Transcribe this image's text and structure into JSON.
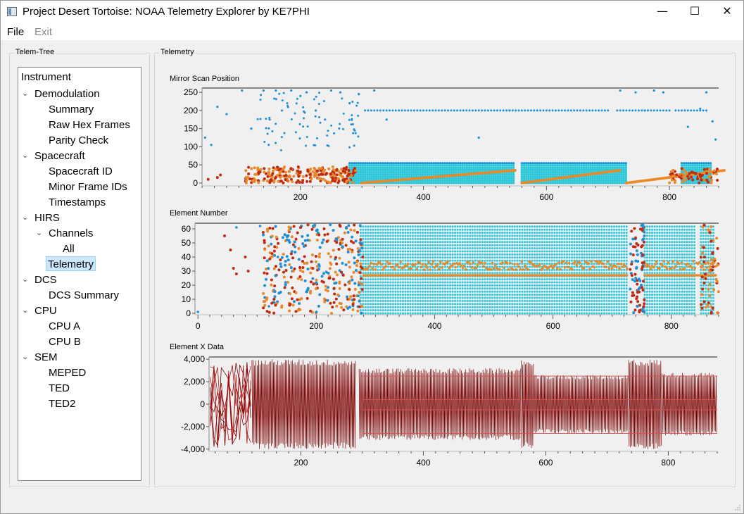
{
  "window": {
    "title": "Project Desert Tortoise: NOAA Telemetry Explorer by KE7PHI",
    "minimize_glyph": "—",
    "maximize_glyph": "☐",
    "close_glyph": "✕"
  },
  "menu": {
    "file": "File",
    "exit": "Exit"
  },
  "tree_panel": {
    "label": "Telem-Tree",
    "root": "Instrument",
    "items": [
      {
        "label": "Demodulation",
        "level": 1,
        "expanded": true
      },
      {
        "label": "Summary",
        "level": 2
      },
      {
        "label": "Raw Hex Frames",
        "level": 2
      },
      {
        "label": "Parity Check",
        "level": 2
      },
      {
        "label": "Spacecraft",
        "level": 1,
        "expanded": true
      },
      {
        "label": "Spacecraft ID",
        "level": 2
      },
      {
        "label": "Minor Frame IDs",
        "level": 2
      },
      {
        "label": "Timestamps",
        "level": 2
      },
      {
        "label": "HIRS",
        "level": 1,
        "expanded": true
      },
      {
        "label": "Channels",
        "level": 2,
        "expanded": true
      },
      {
        "label": "All",
        "level": 3
      },
      {
        "label": "Telemetry",
        "level": 2,
        "selected": true
      },
      {
        "label": "DCS",
        "level": 1,
        "expanded": true
      },
      {
        "label": "DCS Summary",
        "level": 2
      },
      {
        "label": "CPU",
        "level": 1,
        "expanded": true
      },
      {
        "label": "CPU A",
        "level": 2
      },
      {
        "label": "CPU B",
        "level": 2
      },
      {
        "label": "SEM",
        "level": 1,
        "expanded": true
      },
      {
        "label": "MEPED",
        "level": 2
      },
      {
        "label": "TED",
        "level": 2
      },
      {
        "label": "TED2",
        "level": 2
      }
    ]
  },
  "telemetry_panel": {
    "label": "Telemetry"
  },
  "colors": {
    "blue": "#1f8fd6",
    "cyan": "#2ec7d9",
    "orange": "#e8892a",
    "red": "#c02a10",
    "darkred": "#7a0000",
    "selection": "#cce8ff"
  },
  "chart_data": [
    {
      "type": "scatter",
      "title": "Mirror Scan Position",
      "xlim": [
        40,
        880
      ],
      "ylim": [
        -8,
        262
      ],
      "xticks": [
        200,
        400,
        600,
        800
      ],
      "yticks": [
        0,
        50,
        100,
        150,
        200,
        250
      ],
      "series": [
        {
          "color": "blue",
          "description_values": [
            [
              45,
              125
            ],
            [
              55,
              105
            ],
            [
              65,
              210
            ],
            [
              80,
              190
            ],
            [
              105,
              255
            ],
            [
              120,
              150
            ],
            [
              140,
              255
            ],
            [
              150,
              175
            ],
            [
              160,
              255
            ],
            [
              170,
              200
            ],
            [
              185,
              255
            ],
            [
              200,
              240
            ],
            [
              210,
              250
            ],
            [
              225,
              200
            ],
            [
              240,
              175
            ],
            [
              250,
              255
            ],
            [
              265,
              250
            ],
            [
              280,
              220
            ],
            [
              295,
              245
            ],
            [
              320,
              255
            ],
            [
              340,
              175
            ],
            [
              490,
              125
            ],
            [
              540,
              200
            ],
            [
              720,
              255
            ],
            [
              745,
              250
            ],
            [
              760,
              200
            ],
            [
              775,
              255
            ],
            [
              790,
              250
            ],
            [
              830,
              155
            ],
            [
              850,
              205
            ],
            [
              860,
              250
            ],
            [
              870,
              170
            ],
            [
              875,
              120
            ]
          ]
        },
        {
          "color": "orange",
          "description_values": [
            [
              50,
              10
            ],
            [
              65,
              15
            ],
            [
              70,
              22
            ]
          ]
        }
      ]
    },
    {
      "type": "scatter",
      "title": "Element Number",
      "xlim": [
        -5,
        880
      ],
      "ylim": [
        -1,
        64
      ],
      "xticks": [
        0,
        200,
        400,
        600,
        800
      ],
      "yticks": [
        0,
        10,
        20,
        30,
        40,
        50,
        60
      ],
      "series": [
        {
          "color": "blue",
          "description_values": [
            [
              0,
              1
            ],
            [
              65,
              61
            ],
            [
              105,
              62
            ],
            [
              120,
              5
            ],
            [
              135,
              40
            ],
            [
              150,
              55
            ]
          ]
        },
        {
          "color": "orange",
          "description_values": [
            [
              45,
              55
            ],
            [
              55,
              45
            ],
            [
              60,
              32
            ],
            [
              65,
              28
            ],
            [
              80,
              40
            ],
            [
              85,
              30
            ]
          ]
        }
      ]
    },
    {
      "type": "line",
      "title": "Element X Data",
      "xlim": [
        50,
        880
      ],
      "ylim": [
        -4200,
        4200
      ],
      "xticks": [
        200,
        400,
        600,
        800
      ],
      "yticks": [
        -4000,
        -2000,
        0,
        2000,
        4000
      ],
      "tick_labels": [
        "-4,000",
        "-2,000",
        "0",
        "2,000",
        "4,000"
      ]
    }
  ]
}
